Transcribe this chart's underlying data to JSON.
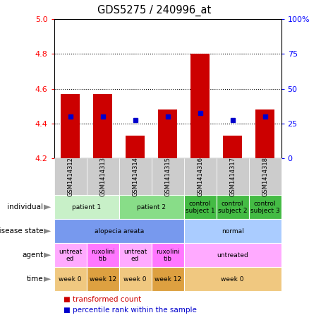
{
  "title": "GDS5275 / 240996_at",
  "samples": [
    "GSM1414312",
    "GSM1414313",
    "GSM1414314",
    "GSM1414315",
    "GSM1414316",
    "GSM1414317",
    "GSM1414318"
  ],
  "bar_values": [
    4.57,
    4.57,
    4.33,
    4.48,
    4.8,
    4.33,
    4.48
  ],
  "bar_base": 4.2,
  "dot_values": [
    4.44,
    4.44,
    4.42,
    4.44,
    4.46,
    4.42,
    4.44
  ],
  "ylim": [
    4.2,
    5.0
  ],
  "y2lim": [
    0,
    100
  ],
  "yticks": [
    4.2,
    4.4,
    4.6,
    4.8,
    5.0
  ],
  "y2ticks": [
    0,
    25,
    50,
    75,
    100
  ],
  "y2ticklabels": [
    "0",
    "25",
    "50",
    "75",
    "100%"
  ],
  "bar_color": "#cc0000",
  "dot_color": "#0000cc",
  "grid_dotted_vals": [
    4.4,
    4.6,
    4.8
  ],
  "metadata_rows": [
    {
      "label": "individual",
      "spans": [
        {
          "cols": [
            0,
            1
          ],
          "label": "patient 1",
          "color": "#c8f0c8"
        },
        {
          "cols": [
            2,
            3
          ],
          "label": "patient 2",
          "color": "#88dd88"
        },
        {
          "cols": [
            4
          ],
          "label": "control\nsubject 1",
          "color": "#44bb44"
        },
        {
          "cols": [
            5
          ],
          "label": "control\nsubject 2",
          "color": "#44bb44"
        },
        {
          "cols": [
            6
          ],
          "label": "control\nsubject 3",
          "color": "#44bb44"
        }
      ]
    },
    {
      "label": "disease state",
      "spans": [
        {
          "cols": [
            0,
            1,
            2,
            3
          ],
          "label": "alopecia areata",
          "color": "#7799ee"
        },
        {
          "cols": [
            4,
            5,
            6
          ],
          "label": "normal",
          "color": "#aaccff"
        }
      ]
    },
    {
      "label": "agent",
      "spans": [
        {
          "cols": [
            0
          ],
          "label": "untreat\ned",
          "color": "#ffaaff"
        },
        {
          "cols": [
            1
          ],
          "label": "ruxolini\ntib",
          "color": "#ff77ff"
        },
        {
          "cols": [
            2
          ],
          "label": "untreat\ned",
          "color": "#ffaaff"
        },
        {
          "cols": [
            3
          ],
          "label": "ruxolini\ntib",
          "color": "#ff77ff"
        },
        {
          "cols": [
            4,
            5,
            6
          ],
          "label": "untreated",
          "color": "#ffaaff"
        }
      ]
    },
    {
      "label": "time",
      "spans": [
        {
          "cols": [
            0
          ],
          "label": "week 0",
          "color": "#f0c880"
        },
        {
          "cols": [
            1
          ],
          "label": "week 12",
          "color": "#dda040"
        },
        {
          "cols": [
            2
          ],
          "label": "week 0",
          "color": "#f0c880"
        },
        {
          "cols": [
            3
          ],
          "label": "week 12",
          "color": "#dda040"
        },
        {
          "cols": [
            4,
            5,
            6
          ],
          "label": "week 0",
          "color": "#f0c880"
        }
      ]
    }
  ],
  "sample_col_color": "#cccccc",
  "bar_width": 0.6,
  "arrow_color": "#888888"
}
